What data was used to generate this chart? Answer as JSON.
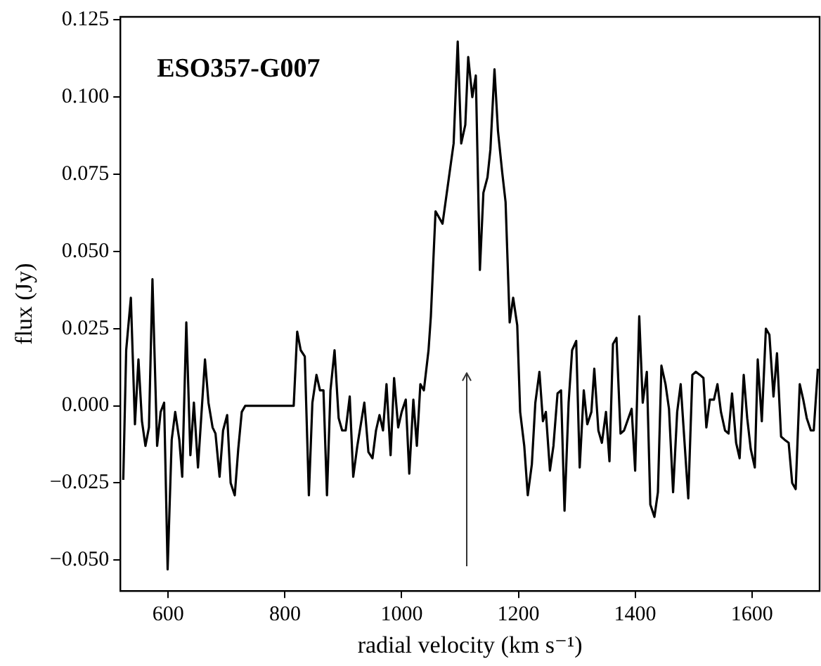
{
  "chart_data": {
    "type": "line",
    "title": "ESO357-G007",
    "xlabel": "radial velocity (km s⁻¹)",
    "ylabel": "flux (Jy)",
    "xlim": [
      518,
      1716
    ],
    "ylim": [
      -0.06,
      0.126
    ],
    "xticks": [
      600,
      800,
      1000,
      1200,
      1400,
      1600
    ],
    "yticks": [
      {
        "value": -0.05,
        "label": "−0.050"
      },
      {
        "value": -0.025,
        "label": "−0.025"
      },
      {
        "value": 0,
        "label": "0.000"
      },
      {
        "value": 0.025,
        "label": "0.025"
      },
      {
        "value": 0.05,
        "label": "0.050"
      },
      {
        "value": 0.075,
        "label": "0.075"
      },
      {
        "value": 0.1,
        "label": "0.100"
      },
      {
        "value": 0.125,
        "label": "0.125"
      }
    ],
    "grid": false,
    "legend": false,
    "marker": "none",
    "line_style": "solid",
    "x": [
      523,
      528,
      536,
      543,
      549,
      555,
      561,
      567,
      573,
      581,
      587,
      593,
      599,
      606,
      612,
      619,
      624,
      631,
      638,
      644,
      651,
      663,
      669,
      676,
      681,
      688,
      694,
      701,
      707,
      714,
      720,
      726,
      732,
      815,
      821,
      827,
      834,
      841,
      847,
      854,
      860,
      866,
      872,
      878,
      885,
      892,
      898,
      904,
      911,
      917,
      924,
      930,
      936,
      943,
      950,
      956,
      962,
      968,
      974,
      981,
      987,
      994,
      1000,
      1007,
      1013,
      1020,
      1026,
      1032,
      1038,
      1046,
      1050,
      1058,
      1070,
      1089,
      1096,
      1102,
      1109,
      1114,
      1121,
      1127,
      1134,
      1140,
      1147,
      1152,
      1159,
      1165,
      1172,
      1178,
      1185,
      1191,
      1198,
      1203,
      1210,
      1216,
      1223,
      1229,
      1236,
      1242,
      1247,
      1254,
      1260,
      1267,
      1273,
      1279,
      1286,
      1292,
      1299,
      1305,
      1312,
      1318,
      1325,
      1330,
      1337,
      1343,
      1350,
      1356,
      1362,
      1368,
      1375,
      1381,
      1394,
      1400,
      1407,
      1413,
      1420,
      1426,
      1433,
      1439,
      1445,
      1452,
      1458,
      1465,
      1472,
      1478,
      1485,
      1491,
      1498,
      1504,
      1511,
      1517,
      1522,
      1528,
      1535,
      1541,
      1547,
      1554,
      1560,
      1566,
      1573,
      1579,
      1586,
      1592,
      1598,
      1605,
      1610,
      1617,
      1624,
      1630,
      1637,
      1643,
      1650,
      1656,
      1663,
      1669,
      1675,
      1682,
      1688,
      1694,
      1701,
      1706,
      1713
    ],
    "series": [
      {
        "color": "#000000",
        "values": [
          -0.024,
          0.018,
          0.035,
          -0.006,
          0.015,
          -0.005,
          -0.013,
          -0.007,
          0.041,
          -0.013,
          -0.002,
          0.001,
          -0.053,
          -0.011,
          -0.002,
          -0.011,
          -0.023,
          0.027,
          -0.016,
          0.001,
          -0.02,
          0.015,
          0.001,
          -0.007,
          -0.009,
          -0.023,
          -0.008,
          -0.003,
          -0.025,
          -0.029,
          -0.014,
          -0.002,
          0,
          0,
          0.024,
          0.018,
          0.016,
          -0.029,
          0.001,
          0.01,
          0.005,
          0.005,
          -0.029,
          0.005,
          0.018,
          -0.004,
          -0.008,
          -0.008,
          0.003,
          -0.023,
          -0.013,
          -0.006,
          0.001,
          -0.015,
          -0.017,
          -0.008,
          -0.003,
          -0.008,
          0.007,
          -0.016,
          0.009,
          -0.007,
          -0.002,
          0.002,
          -0.022,
          0.002,
          -0.013,
          0.007,
          0.005,
          0.018,
          0.029,
          0.063,
          0.059,
          0.085,
          0.118,
          0.085,
          0.091,
          0.113,
          0.1,
          0.107,
          0.044,
          0.069,
          0.074,
          0.083,
          0.109,
          0.089,
          0.076,
          0.066,
          0.027,
          0.035,
          0.026,
          -0.002,
          -0.013,
          -0.029,
          -0.019,
          0.001,
          0.011,
          -0.005,
          -0.002,
          -0.021,
          -0.013,
          0.004,
          0.005,
          -0.034,
          0.001,
          0.018,
          0.021,
          -0.02,
          0.005,
          -0.006,
          -0.002,
          0.012,
          -0.008,
          -0.012,
          -0.002,
          -0.018,
          0.02,
          0.022,
          -0.009,
          -0.008,
          -0.001,
          -0.021,
          0.029,
          0.001,
          0.011,
          -0.032,
          -0.036,
          -0.028,
          0.013,
          0.007,
          -0.001,
          -0.028,
          -0.002,
          0.007,
          -0.013,
          -0.03,
          0.01,
          0.011,
          0.01,
          0.009,
          -0.007,
          0.002,
          0.002,
          0.007,
          -0.002,
          -0.008,
          -0.009,
          0.004,
          -0.012,
          -0.017,
          0.01,
          -0.004,
          -0.014,
          -0.02,
          0.015,
          -0.005,
          0.025,
          0.023,
          0.003,
          0.017,
          -0.01,
          -0.011,
          -0.012,
          -0.025,
          -0.027,
          0.007,
          0.002,
          -0.004,
          -0.008,
          -0.008,
          0.012
        ]
      }
    ]
  }
}
